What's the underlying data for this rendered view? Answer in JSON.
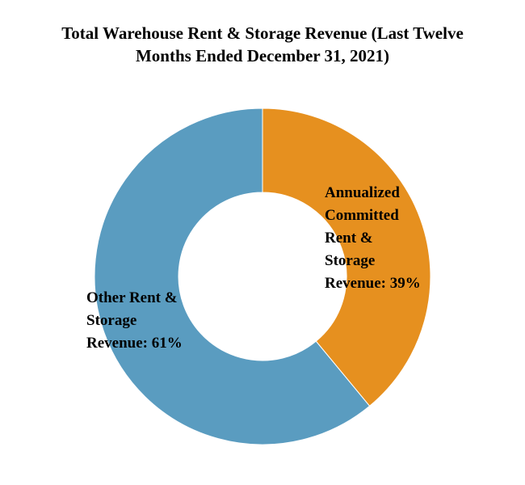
{
  "chart_data": {
    "type": "pie",
    "donut": true,
    "title": "Total Warehouse Rent & Storage Revenue (Last Twelve Months Ended December 31, 2021)",
    "slices": [
      {
        "name": "Annualized Committed Rent & Storage Revenue",
        "value": 39,
        "color": "#e6901f",
        "label_lines": [
          "Annualized",
          "Committed",
          "Rent &",
          "Storage",
          "Revenue: 39%"
        ]
      },
      {
        "name": "Other Rent & Storage Revenue",
        "value": 61,
        "color": "#5a9cc0",
        "label_lines": [
          "Other Rent &",
          "Storage",
          "Revenue: 61%"
        ]
      }
    ]
  }
}
